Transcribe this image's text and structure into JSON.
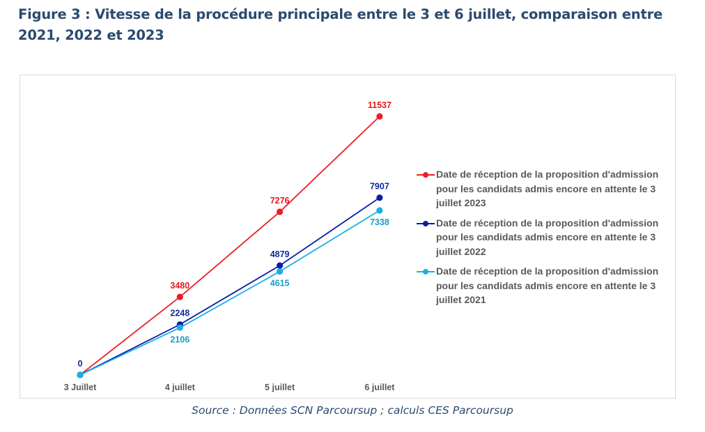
{
  "figure": {
    "title": "Figure 3 : Vitesse de la procédure principale entre le 3 et 6 juillet, comparaison entre 2021, 2022 et 2023",
    "source": "Source : Données SCN Parcoursup ; calculs CES Parcoursup"
  },
  "chart_data": {
    "type": "line",
    "title": "Figure 3 : Vitesse de la procédure principale entre le 3 et 6 juillet, comparaison entre 2021, 2022 et 2023",
    "xlabel": "",
    "ylabel": "",
    "categories": [
      "3 Juillet",
      "4 juillet",
      "5 juillet",
      "6 juillet"
    ],
    "ylim": [
      0,
      11537
    ],
    "grid": false,
    "y_axis_visible": false,
    "legend_position": "right",
    "series": [
      {
        "name": "Date de réception de la proposition d'admission pour les candidats admis encore en attente le 3 juillet 2023",
        "color": "#ee1c25",
        "label_color": "#e31a1c",
        "values": [
          0,
          3480,
          7276,
          11537
        ],
        "labels": [
          "",
          "3480",
          "7276",
          "11537"
        ],
        "label_position": "above"
      },
      {
        "name": "Date de réception de la proposition d'admission pour les candidats admis encore en attente le 3 juillet 2022",
        "color": "#0a1fa6",
        "label_color": "#102a9c",
        "values": [
          0,
          2248,
          4879,
          7907
        ],
        "labels": [
          "0",
          "2248",
          "4879",
          "7907"
        ],
        "label_position": "above"
      },
      {
        "name": "Date de réception de la proposition d'admission pour les candidats admis encore en attente le 3 juillet 2021",
        "color": "#1aaee5",
        "label_color": "#1a9cc9",
        "values": [
          0,
          2106,
          4615,
          7338
        ],
        "labels": [
          "",
          "2106",
          "4615",
          "7338"
        ],
        "label_position": "below"
      }
    ]
  }
}
